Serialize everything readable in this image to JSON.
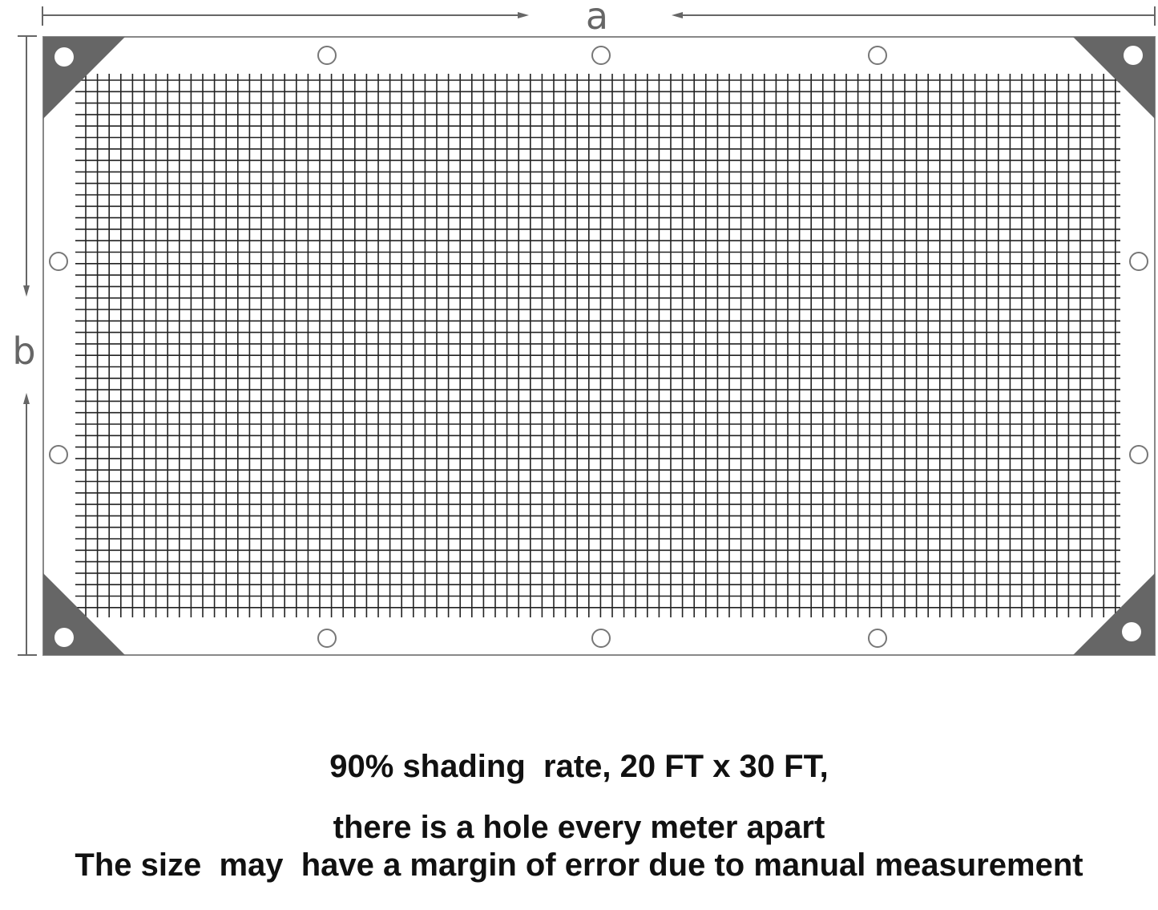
{
  "diagram": {
    "dimension_labels": {
      "width": "a",
      "height": "b"
    },
    "colors": {
      "frame": "#777777",
      "corner": "#666666",
      "mesh": "#222222"
    }
  },
  "caption": {
    "line1": "90% shading  rate, 20 FT x 30 FT,",
    "line2": "there is a hole every meter apart",
    "line3": "The size  may  have a margin of error due to manual measurement"
  }
}
